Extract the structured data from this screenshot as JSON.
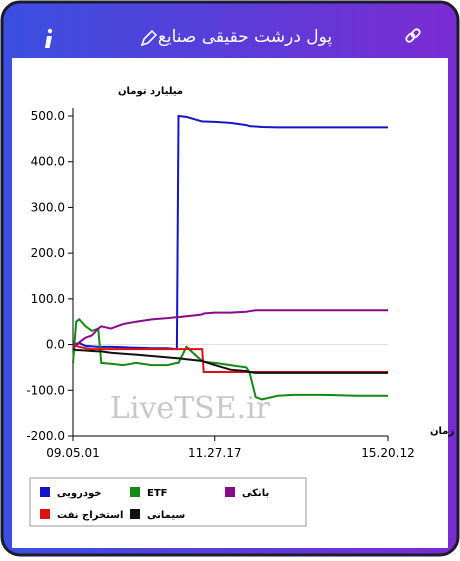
{
  "header": {
    "title": "پول درشت حقیقی صنایع"
  },
  "chart_data": {
    "type": "line",
    "ylabel": "میلیارد تومان",
    "xlabel": "زمان",
    "watermark": "LiveTSE.ir",
    "xlim": [
      0,
      100
    ],
    "xticks": [
      {
        "value": 0,
        "label": "09.05.01"
      },
      {
        "value": 45,
        "label": "11.27.17"
      },
      {
        "value": 100,
        "label": "15.20.12"
      }
    ],
    "ylim": [
      -200,
      500
    ],
    "yticks": [
      {
        "value": 500,
        "label": "500.0"
      },
      {
        "value": 400,
        "label": "400.0"
      },
      {
        "value": 300,
        "label": "300.0"
      },
      {
        "value": 200,
        "label": "200.0"
      },
      {
        "value": 100,
        "label": "100.0"
      },
      {
        "value": 0,
        "label": "0.0"
      },
      {
        "value": -100,
        "label": "-100.0"
      },
      {
        "value": -200,
        "label": "-200.0"
      }
    ],
    "x": [
      0,
      1,
      2,
      4,
      6,
      8,
      9,
      12,
      16,
      20,
      25,
      30,
      33,
      33.5,
      36,
      40,
      41,
      41.5,
      45,
      50,
      55,
      56,
      58,
      60,
      65,
      70,
      80,
      90,
      100
    ],
    "series": [
      {
        "name": "خودرویی",
        "color": "#1515c8",
        "values": [
          0,
          2,
          3,
          -3,
          -4,
          -5,
          -5,
          -5,
          -6,
          -7,
          -8,
          -8,
          -10,
          500,
          498,
          490,
          488,
          488,
          487,
          485,
          480,
          478,
          477,
          476,
          475,
          475,
          475,
          475,
          475
        ]
      },
      {
        "name": "ETF",
        "color": "#138a13",
        "values": [
          -40,
          50,
          55,
          40,
          30,
          35,
          -40,
          -42,
          -45,
          -40,
          -45,
          -45,
          -40,
          -40,
          -5,
          -30,
          -35,
          -38,
          -40,
          -45,
          -50,
          -60,
          -115,
          -120,
          -112,
          -110,
          -110,
          -112,
          -112
        ]
      },
      {
        "name": "بانکی",
        "color": "#8a0a8a",
        "values": [
          -5,
          -3,
          5,
          15,
          20,
          35,
          40,
          35,
          45,
          50,
          55,
          58,
          60,
          60,
          62,
          65,
          66,
          68,
          70,
          70,
          72,
          73,
          75,
          75,
          75,
          75,
          75,
          75,
          75
        ]
      },
      {
        "name": "استخراج نفت",
        "color": "#e01010",
        "values": [
          0,
          -3,
          -5,
          -8,
          -10,
          -10,
          -10,
          -10,
          -10,
          -10,
          -10,
          -10,
          -10,
          -10,
          -10,
          -10,
          -10,
          -60,
          -60,
          -60,
          -60,
          -60,
          -60,
          -60,
          -60,
          -60,
          -60,
          -60,
          -60
        ]
      },
      {
        "name": "سیمانی",
        "color": "#111111",
        "values": [
          -10,
          -12,
          -12,
          -13,
          -14,
          -15,
          -15,
          -18,
          -20,
          -22,
          -25,
          -28,
          -30,
          -30,
          -32,
          -35,
          -36,
          -37,
          -45,
          -55,
          -58,
          -60,
          -62,
          -62,
          -62,
          -62,
          -62,
          -62,
          -62
        ]
      }
    ]
  }
}
